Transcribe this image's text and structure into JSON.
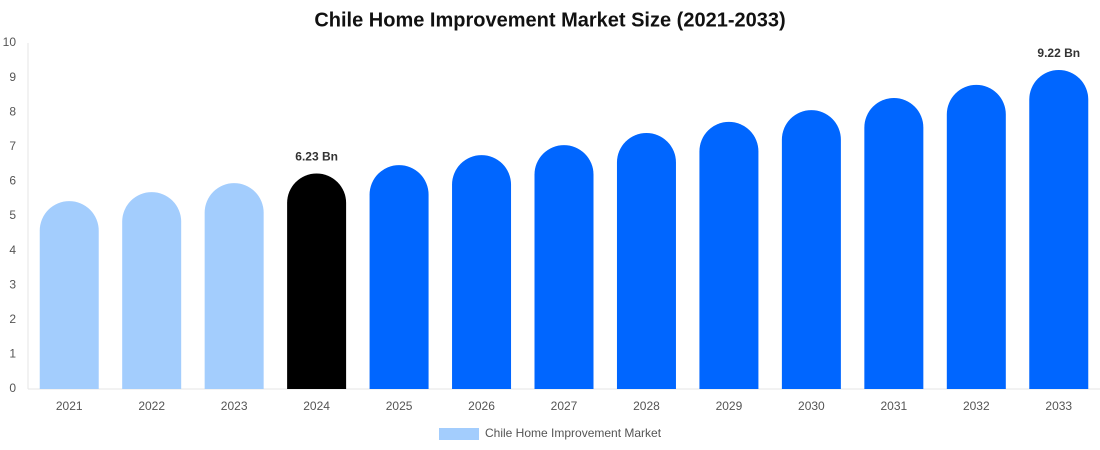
{
  "chart_data": {
    "type": "bar",
    "title": "Chile Home Improvement Market Size (2021-2033)",
    "categories": [
      "2021",
      "2022",
      "2023",
      "2024",
      "2025",
      "2026",
      "2027",
      "2028",
      "2029",
      "2030",
      "2031",
      "2032",
      "2033"
    ],
    "series": [
      {
        "name": "Chile Home Improvement Market",
        "color": "#a3cdfd",
        "colors": [
          "#a3cdfd",
          "#a3cdfd",
          "#a3cdfd",
          "#000000",
          "#0066ff",
          "#0066ff",
          "#0066ff",
          "#0066ff",
          "#0066ff",
          "#0066ff",
          "#0066ff",
          "#0066ff",
          "#0066ff"
        ],
        "values": [
          5.43,
          5.69,
          5.95,
          6.23,
          6.47,
          6.76,
          7.05,
          7.4,
          7.72,
          8.06,
          8.41,
          8.79,
          9.22
        ],
        "value_labels": [
          null,
          null,
          null,
          "6.23 Bn",
          null,
          null,
          null,
          null,
          null,
          null,
          null,
          null,
          "9.22 Bn"
        ]
      }
    ],
    "ylim": [
      0,
      10
    ],
    "yticks": [
      0,
      1,
      2,
      3,
      4,
      5,
      6,
      7,
      8,
      9,
      10
    ],
    "grid": false
  }
}
